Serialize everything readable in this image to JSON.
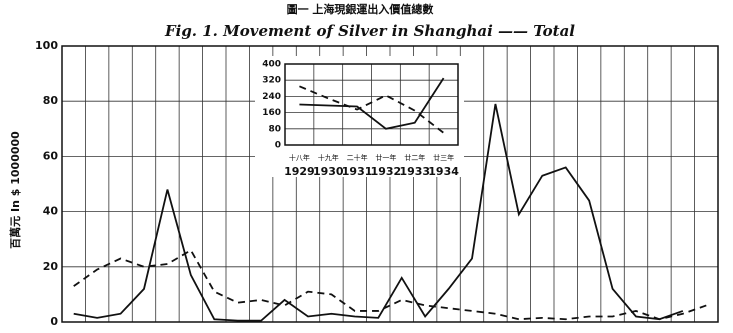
{
  "title_zh": "圖一 上海現銀運出入價值總數",
  "chart_data": [
    {
      "type": "line",
      "title": "Fig. 1.   Movement of Silver in Shanghai —— Total",
      "ylabel": "百萬元 In $ 1000000",
      "categories": [
        null,
        null,
        null,
        null,
        null,
        null,
        null,
        null,
        null,
        null,
        null,
        null,
        null,
        null,
        null,
        null,
        null,
        null,
        null,
        null,
        null,
        null,
        null,
        null,
        null,
        null,
        null,
        null
      ],
      "ylim": [
        0,
        100
      ],
      "yticks": [
        0,
        20,
        40,
        60,
        80,
        100
      ],
      "grid": true,
      "series": [
        {
          "color": "#111",
          "dash": "none",
          "values": [
            3,
            1.5,
            3,
            12,
            48,
            17,
            1,
            0.5,
            0.5,
            8,
            2,
            3,
            2,
            1.5,
            16,
            2,
            12,
            23,
            79,
            39,
            53,
            56,
            44,
            12,
            2,
            1,
            4,
            null
          ]
        },
        {
          "color": "#111",
          "dash": "7 5",
          "values": [
            13,
            19,
            23,
            20,
            21,
            26,
            11,
            7,
            8,
            6,
            11,
            10,
            4,
            4,
            8,
            6,
            5,
            4,
            3,
            1,
            1.5,
            1,
            2,
            2,
            4,
            1,
            3,
            6
          ]
        }
      ]
    },
    {
      "type": "line",
      "categories": [
        "1929",
        "1930",
        "1931",
        "1932",
        "1933",
        "1934"
      ],
      "categories_zh": [
        "十八年",
        "十九年",
        "二十年",
        "廿一年",
        "廿二年",
        "廿三年"
      ],
      "ylim": [
        0,
        400
      ],
      "yticks": [
        0,
        80,
        160,
        240,
        320,
        400
      ],
      "grid": true,
      "series": [
        {
          "color": "#111",
          "dash": "none",
          "values": [
            200,
            195,
            190,
            80,
            110,
            330
          ]
        },
        {
          "color": "#111",
          "dash": "7 5",
          "values": [
            290,
            230,
            175,
            245,
            170,
            60
          ]
        }
      ]
    }
  ]
}
